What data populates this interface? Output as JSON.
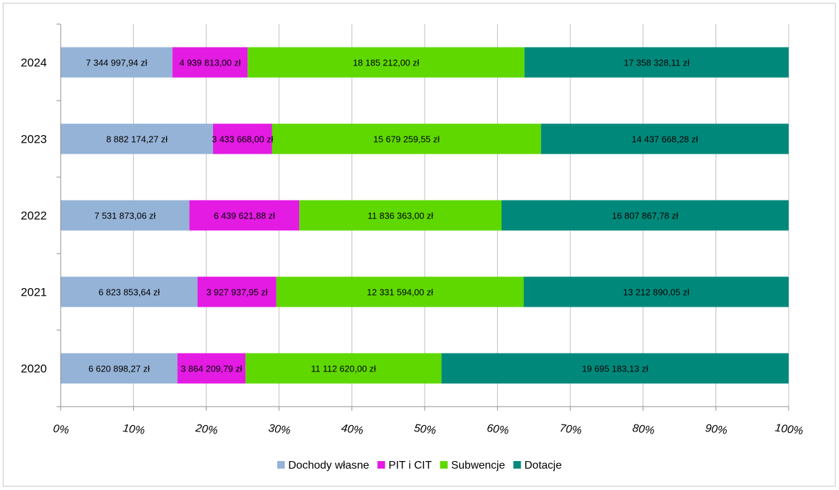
{
  "chart_data": {
    "type": "bar",
    "orientation": "horizontal",
    "stacking": "percent",
    "categories": [
      "2024",
      "2023",
      "2022",
      "2021",
      "2020"
    ],
    "series": [
      {
        "name": "Dochody własne",
        "color": "#95b3d7",
        "values": [
          7344997.94,
          8882174.27,
          7531873.06,
          6823853.64,
          6620898.27
        ],
        "labels": [
          "7 344 997,94 zł",
          "8 882 174,27 zł",
          "7 531 873,06 zł",
          "6 823 853,64 zł",
          "6 620 898,27 zł"
        ]
      },
      {
        "name": "PIT i CIT",
        "color": "#e31be3",
        "values": [
          4939813.0,
          3433668.0,
          6439621.88,
          3927937.95,
          3864209.79
        ],
        "labels": [
          "4 939 813,00 zł",
          "3 433 668,00 zł",
          "6 439 621,88 zł",
          "3 927 937,95 zł",
          "3 864 209,79 zł"
        ]
      },
      {
        "name": "Subwencje",
        "color": "#5fd800",
        "values": [
          18185212.0,
          15679259.55,
          11836363.0,
          12331594.0,
          11112620.0
        ],
        "labels": [
          "18 185 212,00 zł",
          "15 679 259,55 zł",
          "11 836 363,00 zł",
          "12 331 594,00 zł",
          "11 112 620,00 zł"
        ]
      },
      {
        "name": "Dotacje",
        "color": "#00897b",
        "values": [
          17358328.11,
          14437668.28,
          16807867.78,
          13212890.05,
          19695183.13
        ],
        "labels": [
          "17 358 328,11 zł",
          "14 437 668,28 zł",
          "16 807 867,78 zł",
          "13 212 890,05 zł",
          "19 695 183,13 zł"
        ]
      }
    ],
    "x_ticks": [
      "0%",
      "10%",
      "20%",
      "30%",
      "40%",
      "50%",
      "60%",
      "70%",
      "80%",
      "90%",
      "100%"
    ],
    "xlim": [
      0,
      100
    ],
    "grid": true,
    "legend_position": "bottom"
  }
}
